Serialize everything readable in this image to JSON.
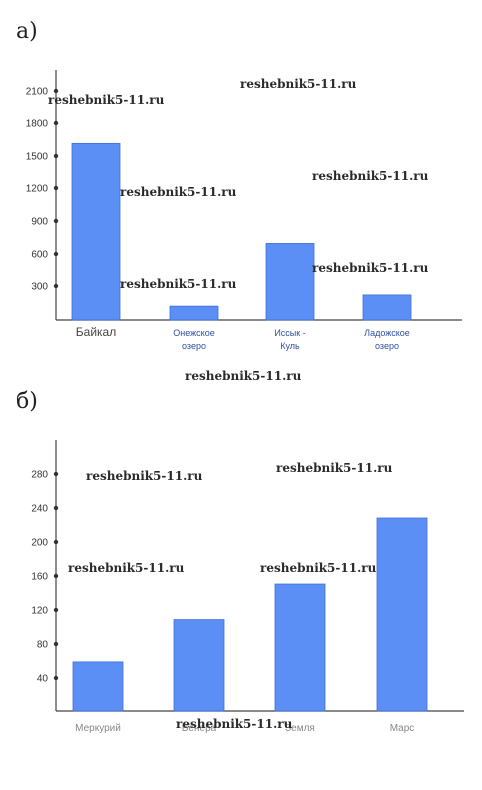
{
  "panels": {
    "a_label": "а)",
    "b_label": "б)"
  },
  "watermark": "reshebnik5-11.ru",
  "colors": {
    "bar": "#5b8ff5",
    "bar_stroke": "#3f6fd8",
    "axis": "#444444"
  },
  "chart_data": [
    {
      "type": "bar",
      "title": "",
      "xlabel": "",
      "ylabel": "",
      "ylim": [
        0,
        2100
      ],
      "y_ticks": [
        "2100",
        "1800",
        "1500",
        "1200",
        "900",
        "600",
        "300"
      ],
      "categories": [
        [
          "Байкал"
        ],
        [
          "Онежское",
          "озеро"
        ],
        [
          "Иссык -",
          "Куль"
        ],
        [
          "Ладожское",
          "озеро"
        ]
      ],
      "values": [
        1620,
        127,
        702,
        230
      ],
      "grid": false
    },
    {
      "type": "bar",
      "title": "",
      "xlabel": "",
      "ylabel": "",
      "ylim": [
        0,
        280
      ],
      "y_ticks": [
        "280",
        "240",
        "200",
        "160",
        "120",
        "80",
        "40"
      ],
      "categories": [
        [
          "Меркурий"
        ],
        [
          "Венера"
        ],
        [
          "Земля"
        ],
        [
          "Марс"
        ]
      ],
      "values": [
        58,
        108,
        150,
        228
      ],
      "grid": false
    }
  ]
}
